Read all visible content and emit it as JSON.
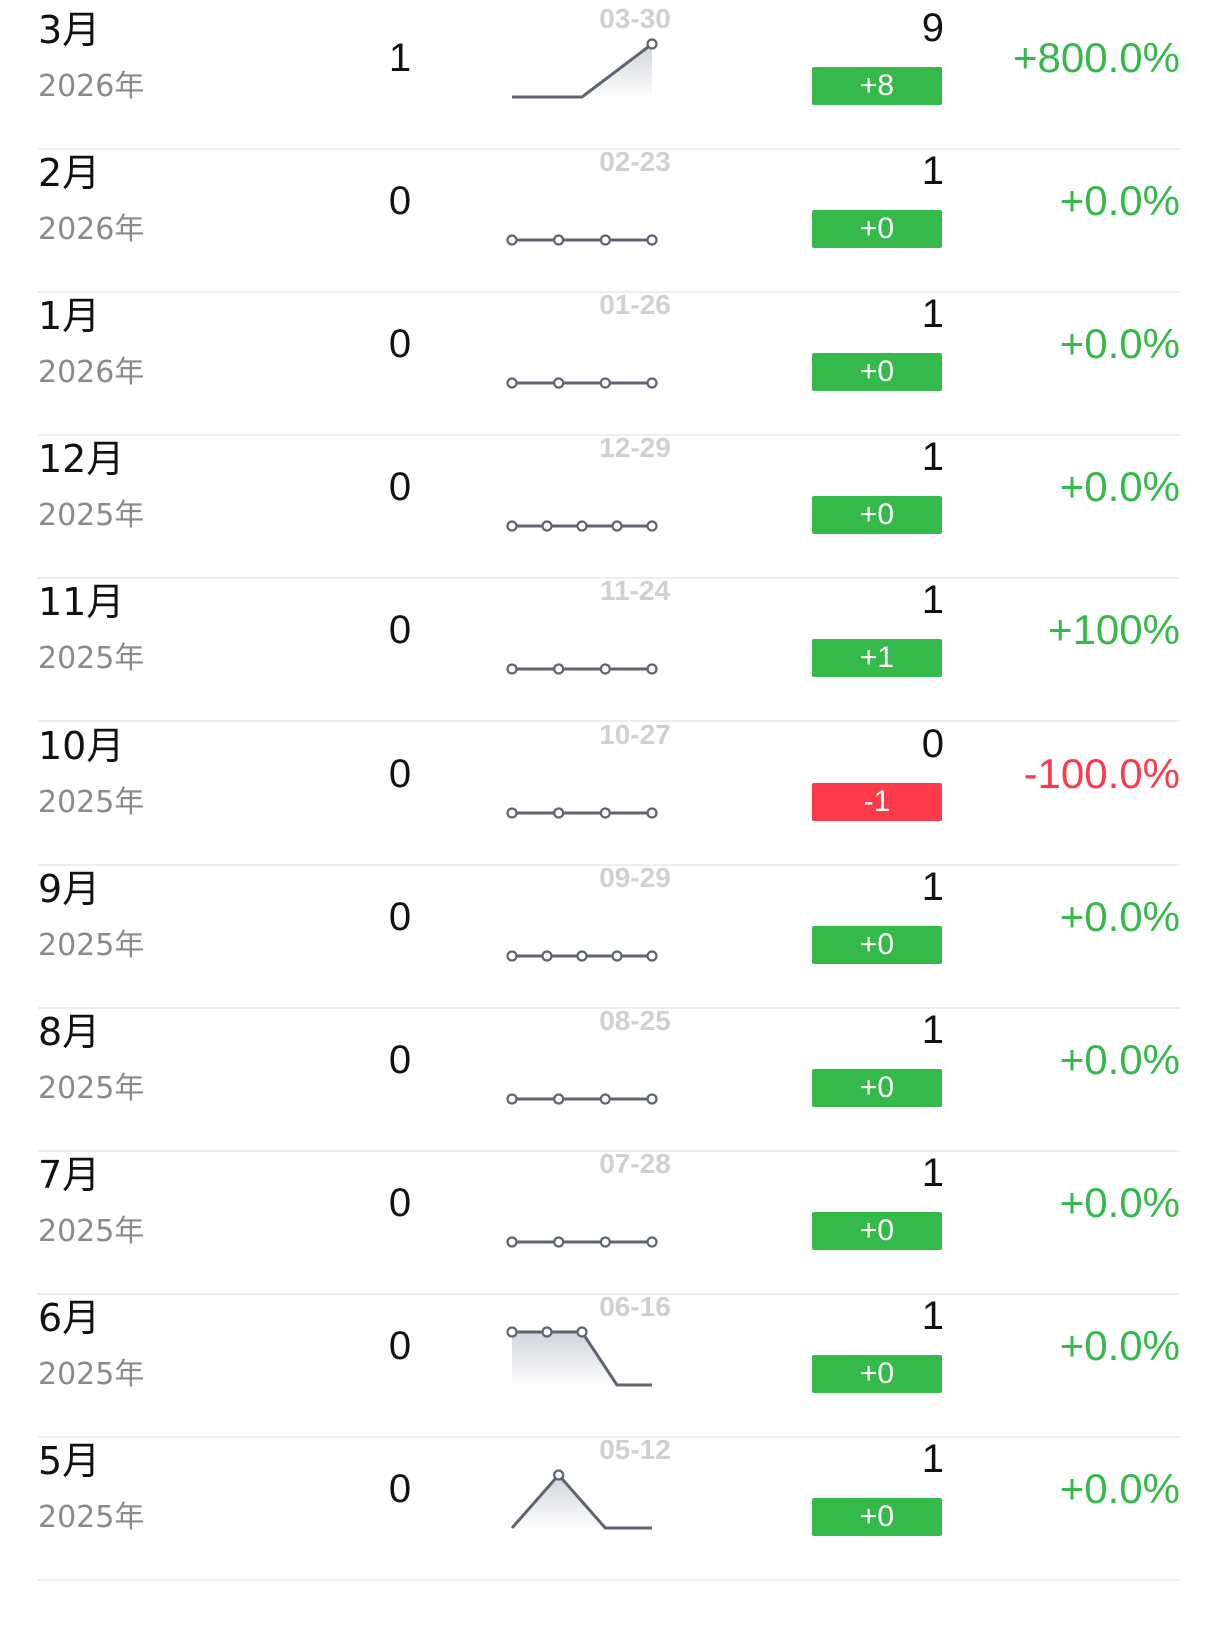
{
  "colors": {
    "positive": "#35b94a",
    "negative": "#fb3b4c",
    "sparkline": "#5e6470",
    "date_label": "#d0d0d2",
    "year_text": "#8a8a8a"
  },
  "rows": [
    {
      "month": "3月",
      "year": "2026年",
      "left_value": "1",
      "spark_date": "03-30",
      "right_value": "9",
      "change": "+8",
      "percent": "+800.0%",
      "trend": "up",
      "sparkline": {
        "points": [
          0,
          0,
          1
        ],
        "markers": [
          2
        ],
        "fill": true
      }
    },
    {
      "month": "2月",
      "year": "2026年",
      "left_value": "0",
      "spark_date": "02-23",
      "right_value": "1",
      "change": "+0",
      "percent": "+0.0%",
      "trend": "up",
      "sparkline": {
        "points": [
          0,
          0,
          0,
          0
        ],
        "markers": [
          0,
          1,
          2,
          3
        ],
        "fill": false
      }
    },
    {
      "month": "1月",
      "year": "2026年",
      "left_value": "0",
      "spark_date": "01-26",
      "right_value": "1",
      "change": "+0",
      "percent": "+0.0%",
      "trend": "up",
      "sparkline": {
        "points": [
          0,
          0,
          0,
          0
        ],
        "markers": [
          0,
          1,
          2,
          3
        ],
        "fill": false
      }
    },
    {
      "month": "12月",
      "year": "2025年",
      "left_value": "0",
      "spark_date": "12-29",
      "right_value": "1",
      "change": "+0",
      "percent": "+0.0%",
      "trend": "up",
      "sparkline": {
        "points": [
          0,
          0,
          0,
          0,
          0
        ],
        "markers": [
          0,
          1,
          2,
          3,
          4
        ],
        "fill": false
      }
    },
    {
      "month": "11月",
      "year": "2025年",
      "left_value": "0",
      "spark_date": "11-24",
      "right_value": "1",
      "change": "+1",
      "percent": "+100%",
      "trend": "up",
      "sparkline": {
        "points": [
          0,
          0,
          0,
          0
        ],
        "markers": [
          0,
          1,
          2,
          3
        ],
        "fill": false
      }
    },
    {
      "month": "10月",
      "year": "2025年",
      "left_value": "0",
      "spark_date": "10-27",
      "right_value": "0",
      "change": "-1",
      "percent": "-100.0%",
      "trend": "down",
      "sparkline": {
        "points": [
          0,
          0,
          0,
          0
        ],
        "markers": [
          0,
          1,
          2,
          3
        ],
        "fill": false
      }
    },
    {
      "month": "9月",
      "year": "2025年",
      "left_value": "0",
      "spark_date": "09-29",
      "right_value": "1",
      "change": "+0",
      "percent": "+0.0%",
      "trend": "up",
      "sparkline": {
        "points": [
          0,
          0,
          0,
          0,
          0
        ],
        "markers": [
          0,
          1,
          2,
          3,
          4
        ],
        "fill": false
      }
    },
    {
      "month": "8月",
      "year": "2025年",
      "left_value": "0",
      "spark_date": "08-25",
      "right_value": "1",
      "change": "+0",
      "percent": "+0.0%",
      "trend": "up",
      "sparkline": {
        "points": [
          0,
          0,
          0,
          0
        ],
        "markers": [
          0,
          1,
          2,
          3
        ],
        "fill": false
      }
    },
    {
      "month": "7月",
      "year": "2025年",
      "left_value": "0",
      "spark_date": "07-28",
      "right_value": "1",
      "change": "+0",
      "percent": "+0.0%",
      "trend": "up",
      "sparkline": {
        "points": [
          0,
          0,
          0,
          0
        ],
        "markers": [
          0,
          1,
          2,
          3
        ],
        "fill": false
      }
    },
    {
      "month": "6月",
      "year": "2025年",
      "left_value": "0",
      "spark_date": "06-16",
      "right_value": "1",
      "change": "+0",
      "percent": "+0.0%",
      "trend": "up",
      "sparkline": {
        "points": [
          1,
          1,
          1,
          0,
          0
        ],
        "markers": [
          0,
          1,
          2
        ],
        "fill": true
      }
    },
    {
      "month": "5月",
      "year": "2025年",
      "left_value": "0",
      "spark_date": "05-12",
      "right_value": "1",
      "change": "+0",
      "percent": "+0.0%",
      "trend": "up",
      "sparkline": {
        "points": [
          0,
          1,
          0,
          0
        ],
        "markers": [
          1
        ],
        "fill": true
      }
    }
  ]
}
